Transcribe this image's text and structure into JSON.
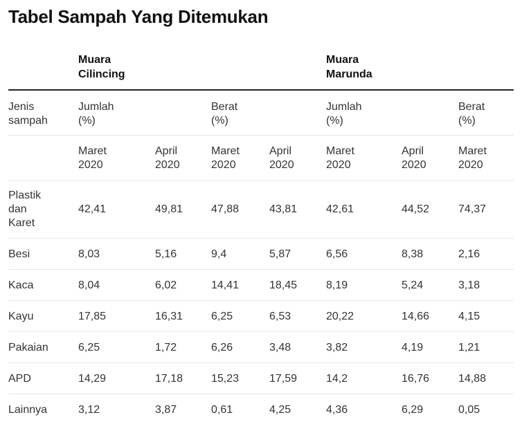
{
  "title": "Tabel Sampah Yang Ditemukan",
  "groups": [
    {
      "line1": "Muara",
      "line2": "Cilincing"
    },
    {
      "line1": "Muara",
      "line2": "Marunda"
    }
  ],
  "header": {
    "jenis": [
      "Jenis",
      "sampah"
    ],
    "measures": [
      {
        "line1": "Jumlah",
        "line2": "(%)"
      },
      {
        "line1": "Berat",
        "line2": "(%)"
      },
      {
        "line1": "Jumlah",
        "line2": "(%)"
      },
      {
        "line1": "Berat",
        "line2": "(%)"
      }
    ],
    "months": [
      {
        "line1": "Maret",
        "line2": "2020"
      },
      {
        "line1": "April",
        "line2": "2020"
      },
      {
        "line1": "Maret",
        "line2": "2020"
      },
      {
        "line1": "April",
        "line2": "2020"
      },
      {
        "line1": "Maret",
        "line2": "2020"
      },
      {
        "line1": "April",
        "line2": "2020"
      },
      {
        "line1": "Maret",
        "line2": "2020"
      }
    ]
  },
  "rows": [
    {
      "label": [
        "Plastik",
        "dan",
        "Karet"
      ],
      "values": [
        "42,41",
        "49,81",
        "47,88",
        "43,81",
        "42,61",
        "44,52",
        "74,37"
      ]
    },
    {
      "label": [
        "Besi"
      ],
      "values": [
        "8,03",
        "5,16",
        "9,4",
        "5,87",
        "6,56",
        "8,38",
        "2,16"
      ]
    },
    {
      "label": [
        "Kaca"
      ],
      "values": [
        "8,04",
        "6,02",
        "14,41",
        "18,45",
        "8,19",
        "5,24",
        "3,18"
      ]
    },
    {
      "label": [
        "Kayu"
      ],
      "values": [
        "17,85",
        "16,31",
        "6,25",
        "6,53",
        "20,22",
        "14,66",
        "4,15"
      ]
    },
    {
      "label": [
        "Pakaian"
      ],
      "values": [
        "6,25",
        "1,72",
        "6,26",
        "3,48",
        "3,82",
        "4,19",
        "1,21"
      ]
    },
    {
      "label": [
        "APD"
      ],
      "values": [
        "14,29",
        "17,18",
        "15,23",
        "17,59",
        "14,2",
        "16,76",
        "14,88"
      ]
    },
    {
      "label": [
        "Lainnya"
      ],
      "values": [
        "3,12",
        "3,87",
        "0,61",
        "4,25",
        "4,36",
        "6,29",
        "0,05"
      ]
    }
  ]
}
